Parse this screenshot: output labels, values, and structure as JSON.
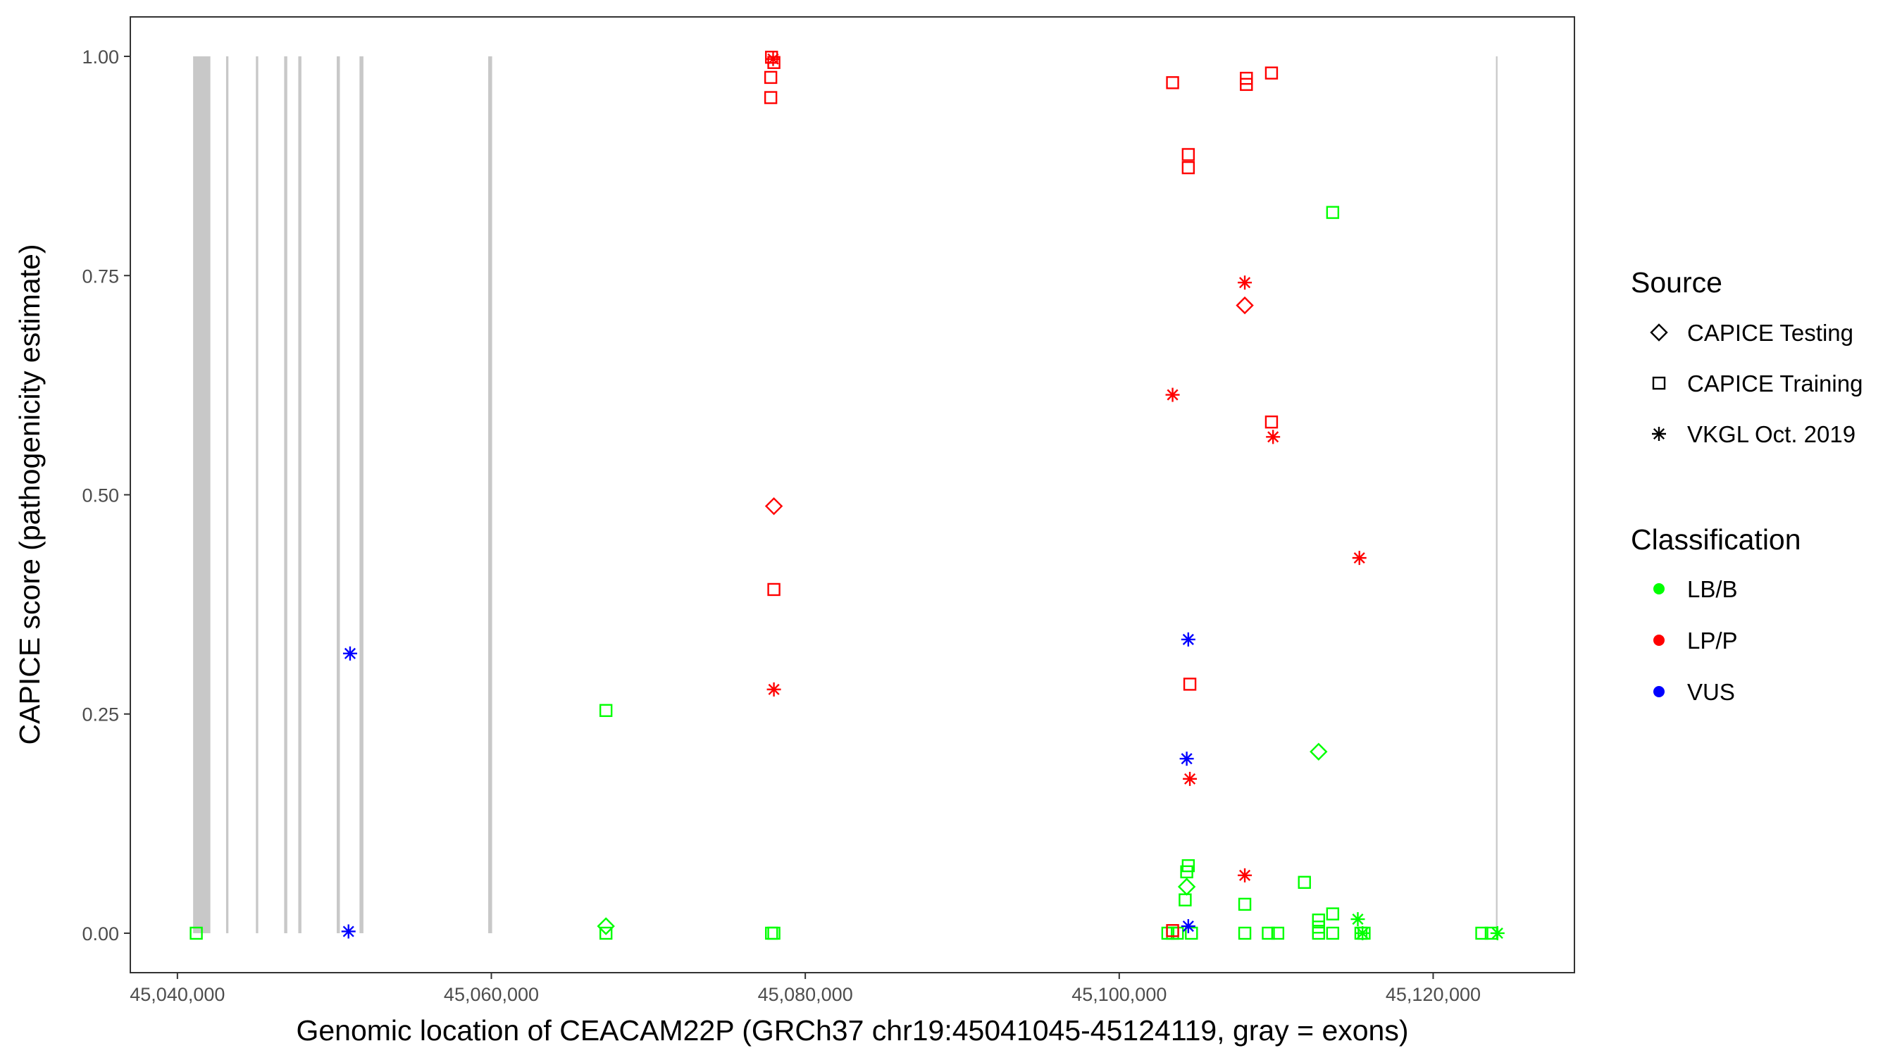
{
  "chart_data": {
    "type": "scatter",
    "xlabel": "Genomic location of CEACAM22P (GRCh37 chr19:45041045-45124119, gray = exons)",
    "ylabel": "CAPICE score (pathogenicity estimate)",
    "xlim": [
      45037000,
      45129000
    ],
    "ylim": [
      -0.045,
      1.045
    ],
    "x_ticks": [
      45040000,
      45060000,
      45080000,
      45100000,
      45120000
    ],
    "x_tick_labels": [
      "45,040,000",
      "45,060,000",
      "45,080,000",
      "45,100,000",
      "45,120,000"
    ],
    "y_ticks": [
      0,
      0.25,
      0.5,
      0.75,
      1
    ],
    "y_tick_labels": [
      "0.00",
      "0.25",
      "0.50",
      "0.75",
      "1.00"
    ],
    "grid": false,
    "legend_position": "right",
    "exons": [
      {
        "start": 45041000,
        "end": 45042100
      },
      {
        "start": 45043100,
        "end": 45043250
      },
      {
        "start": 45045000,
        "end": 45045150
      },
      {
        "start": 45046800,
        "end": 45047000
      },
      {
        "start": 45047700,
        "end": 45047900
      },
      {
        "start": 45050150,
        "end": 45050350
      },
      {
        "start": 45051600,
        "end": 45051850
      },
      {
        "start": 45059800,
        "end": 45060050
      },
      {
        "start": 45124000,
        "end": 45124100
      }
    ],
    "legends": {
      "source": {
        "title": "Source",
        "items": [
          {
            "label": "CAPICE Testing",
            "shape": "diamond"
          },
          {
            "label": "CAPICE Training",
            "shape": "square"
          },
          {
            "label": "VKGL Oct. 2019",
            "shape": "asterisk"
          }
        ]
      },
      "classification": {
        "title": "Classification",
        "items": [
          {
            "label": "LB/B",
            "color": "#00ff00"
          },
          {
            "label": "LP/P",
            "color": "#ff0000"
          },
          {
            "label": "VUS",
            "color": "#0000ff"
          }
        ]
      }
    },
    "points": [
      {
        "x": 45041200,
        "y": 0.0,
        "source": "CAPICE Training",
        "classification": "LB/B"
      },
      {
        "x": 45067300,
        "y": 0.254,
        "source": "CAPICE Training",
        "classification": "LB/B"
      },
      {
        "x": 45067300,
        "y": 0.008,
        "source": "CAPICE Testing",
        "classification": "LB/B"
      },
      {
        "x": 45067300,
        "y": 0.0,
        "source": "CAPICE Training",
        "classification": "LB/B"
      },
      {
        "x": 45077850,
        "y": 0.0,
        "source": "CAPICE Training",
        "classification": "LB/B"
      },
      {
        "x": 45078000,
        "y": 0.0,
        "source": "CAPICE Training",
        "classification": "LB/B"
      },
      {
        "x": 45103100,
        "y": 0.0,
        "source": "CAPICE Training",
        "classification": "LB/B"
      },
      {
        "x": 45103400,
        "y": 0.0,
        "source": "CAPICE Training",
        "classification": "LB/B"
      },
      {
        "x": 45103700,
        "y": 0.0,
        "source": "CAPICE Training",
        "classification": "LB/B"
      },
      {
        "x": 45104200,
        "y": 0.038,
        "source": "CAPICE Training",
        "classification": "LB/B"
      },
      {
        "x": 45104300,
        "y": 0.07,
        "source": "CAPICE Training",
        "classification": "LB/B"
      },
      {
        "x": 45104400,
        "y": 0.077,
        "source": "CAPICE Training",
        "classification": "LB/B"
      },
      {
        "x": 45104300,
        "y": 0.053,
        "source": "CAPICE Testing",
        "classification": "LB/B"
      },
      {
        "x": 45104600,
        "y": 0.0,
        "source": "CAPICE Training",
        "classification": "LB/B"
      },
      {
        "x": 45108000,
        "y": 0.033,
        "source": "CAPICE Training",
        "classification": "LB/B"
      },
      {
        "x": 45108000,
        "y": 0.0,
        "source": "CAPICE Training",
        "classification": "LB/B"
      },
      {
        "x": 45109500,
        "y": 0.0,
        "source": "CAPICE Training",
        "classification": "LB/B"
      },
      {
        "x": 45110100,
        "y": 0.0,
        "source": "CAPICE Training",
        "classification": "LB/B"
      },
      {
        "x": 45111800,
        "y": 0.058,
        "source": "CAPICE Training",
        "classification": "LB/B"
      },
      {
        "x": 45112700,
        "y": 0.0,
        "source": "CAPICE Training",
        "classification": "LB/B"
      },
      {
        "x": 45112700,
        "y": 0.007,
        "source": "CAPICE Training",
        "classification": "LB/B"
      },
      {
        "x": 45112700,
        "y": 0.015,
        "source": "CAPICE Training",
        "classification": "LB/B"
      },
      {
        "x": 45112700,
        "y": 0.207,
        "source": "CAPICE Testing",
        "classification": "LB/B"
      },
      {
        "x": 45113600,
        "y": 0.822,
        "source": "CAPICE Training",
        "classification": "LB/B"
      },
      {
        "x": 45113600,
        "y": 0.022,
        "source": "CAPICE Training",
        "classification": "LB/B"
      },
      {
        "x": 45113600,
        "y": 0.0,
        "source": "CAPICE Training",
        "classification": "LB/B"
      },
      {
        "x": 45115200,
        "y": 0.016,
        "source": "VKGL Oct. 2019",
        "classification": "LB/B"
      },
      {
        "x": 45115400,
        "y": 0.0,
        "source": "CAPICE Training",
        "classification": "LB/B"
      },
      {
        "x": 45115500,
        "y": 0.0,
        "source": "VKGL Oct. 2019",
        "classification": "LB/B"
      },
      {
        "x": 45115600,
        "y": 0.0,
        "source": "CAPICE Training",
        "classification": "LB/B"
      },
      {
        "x": 45123100,
        "y": 0.0,
        "source": "CAPICE Training",
        "classification": "LB/B"
      },
      {
        "x": 45123700,
        "y": 0.0,
        "source": "CAPICE Training",
        "classification": "LB/B"
      },
      {
        "x": 45124100,
        "y": 0.0,
        "source": "VKGL Oct. 2019",
        "classification": "LB/B"
      },
      {
        "x": 45077850,
        "y": 0.999,
        "source": "CAPICE Training",
        "classification": "LP/P"
      },
      {
        "x": 45077950,
        "y": 0.997,
        "source": "VKGL Oct. 2019",
        "classification": "LP/P"
      },
      {
        "x": 45078000,
        "y": 0.993,
        "source": "CAPICE Training",
        "classification": "LP/P"
      },
      {
        "x": 45077800,
        "y": 0.976,
        "source": "CAPICE Training",
        "classification": "LP/P"
      },
      {
        "x": 45077800,
        "y": 0.953,
        "source": "CAPICE Training",
        "classification": "LP/P"
      },
      {
        "x": 45078000,
        "y": 0.487,
        "source": "CAPICE Testing",
        "classification": "LP/P"
      },
      {
        "x": 45078000,
        "y": 0.392,
        "source": "CAPICE Training",
        "classification": "LP/P"
      },
      {
        "x": 45078000,
        "y": 0.278,
        "source": "VKGL Oct. 2019",
        "classification": "LP/P"
      },
      {
        "x": 45103400,
        "y": 0.97,
        "source": "CAPICE Training",
        "classification": "LP/P"
      },
      {
        "x": 45103400,
        "y": 0.614,
        "source": "VKGL Oct. 2019",
        "classification": "LP/P"
      },
      {
        "x": 45103400,
        "y": 0.003,
        "source": "CAPICE Training",
        "classification": "LP/P"
      },
      {
        "x": 45104400,
        "y": 0.888,
        "source": "CAPICE Training",
        "classification": "LP/P"
      },
      {
        "x": 45104400,
        "y": 0.873,
        "source": "CAPICE Training",
        "classification": "LP/P"
      },
      {
        "x": 45104500,
        "y": 0.284,
        "source": "CAPICE Training",
        "classification": "LP/P"
      },
      {
        "x": 45104500,
        "y": 0.176,
        "source": "VKGL Oct. 2019",
        "classification": "LP/P"
      },
      {
        "x": 45108100,
        "y": 0.975,
        "source": "CAPICE Training",
        "classification": "LP/P"
      },
      {
        "x": 45108100,
        "y": 0.968,
        "source": "CAPICE Training",
        "classification": "LP/P"
      },
      {
        "x": 45108000,
        "y": 0.742,
        "source": "VKGL Oct. 2019",
        "classification": "LP/P"
      },
      {
        "x": 45108000,
        "y": 0.716,
        "source": "CAPICE Testing",
        "classification": "LP/P"
      },
      {
        "x": 45108000,
        "y": 0.066,
        "source": "VKGL Oct. 2019",
        "classification": "LP/P"
      },
      {
        "x": 45109700,
        "y": 0.981,
        "source": "CAPICE Training",
        "classification": "LP/P"
      },
      {
        "x": 45109700,
        "y": 0.583,
        "source": "CAPICE Training",
        "classification": "LP/P"
      },
      {
        "x": 45109800,
        "y": 0.566,
        "source": "VKGL Oct. 2019",
        "classification": "LP/P"
      },
      {
        "x": 45115300,
        "y": 0.428,
        "source": "VKGL Oct. 2019",
        "classification": "LP/P"
      },
      {
        "x": 45051000,
        "y": 0.319,
        "source": "VKGL Oct. 2019",
        "classification": "VUS"
      },
      {
        "x": 45050900,
        "y": 0.002,
        "source": "VKGL Oct. 2019",
        "classification": "VUS"
      },
      {
        "x": 45104400,
        "y": 0.335,
        "source": "VKGL Oct. 2019",
        "classification": "VUS"
      },
      {
        "x": 45104300,
        "y": 0.199,
        "source": "VKGL Oct. 2019",
        "classification": "VUS"
      },
      {
        "x": 45104400,
        "y": 0.008,
        "source": "VKGL Oct. 2019",
        "classification": "VUS"
      }
    ]
  }
}
